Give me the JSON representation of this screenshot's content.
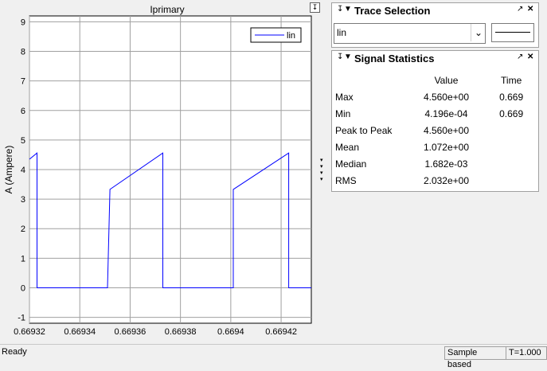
{
  "plot": {
    "title": "Iprimary",
    "ylabel": "A (Ampere)",
    "legend_label": "lin",
    "pin_icon": "pin-icon"
  },
  "chart_data": {
    "type": "line",
    "title": "Iprimary",
    "xlabel": "",
    "ylabel": "A (Ampere)",
    "xlim": [
      0.66932,
      0.669432
    ],
    "ylim": [
      -1.2,
      9.2
    ],
    "x_ticks": [
      "0.66932",
      "0.66934",
      "0.66936",
      "0.66938",
      "0.6694",
      "0.66942"
    ],
    "x_tick_values": [
      0.66932,
      0.66934,
      0.66936,
      0.66938,
      0.6694,
      0.66942
    ],
    "y_ticks": [
      "-1",
      "0",
      "1",
      "2",
      "3",
      "4",
      "5",
      "6",
      "7",
      "8",
      "9"
    ],
    "y_tick_values": [
      -1,
      0,
      1,
      2,
      3,
      4,
      5,
      6,
      7,
      8,
      9
    ],
    "grid": true,
    "legend_position": "top-right",
    "series": [
      {
        "name": "lin",
        "color": "#0000ff",
        "x": [
          0.66932,
          0.669323,
          0.669323,
          0.669351,
          0.669352,
          0.669373,
          0.669373,
          0.669401,
          0.669401,
          0.669423,
          0.669423,
          0.669432
        ],
        "y": [
          4.35,
          4.56,
          0.0,
          0.0,
          3.33,
          4.56,
          0.0,
          0.0,
          3.33,
          4.56,
          0.0,
          0.0
        ]
      }
    ]
  },
  "trace_selection": {
    "title": "Trace Selection",
    "selected": "lin"
  },
  "signal_statistics": {
    "title": "Signal Statistics",
    "headers": {
      "value": "Value",
      "time": "Time"
    },
    "rows": [
      {
        "name": "Max",
        "value": "4.560e+00",
        "time": "0.669"
      },
      {
        "name": "Min",
        "value": "4.196e-04",
        "time": "0.669"
      },
      {
        "name": "Peak to Peak",
        "value": "4.560e+00",
        "time": ""
      },
      {
        "name": "Mean",
        "value": "1.072e+00",
        "time": ""
      },
      {
        "name": "Median",
        "value": "1.682e-03",
        "time": ""
      },
      {
        "name": "RMS",
        "value": "2.032e+00",
        "time": ""
      }
    ]
  },
  "status_bar": {
    "status": "Ready",
    "mode": "Sample based",
    "time": "T=1.000"
  },
  "icons": {
    "pin": "↧",
    "collapse": "▼",
    "undock": "↗",
    "close": "✕",
    "dropdown": "⌄"
  }
}
